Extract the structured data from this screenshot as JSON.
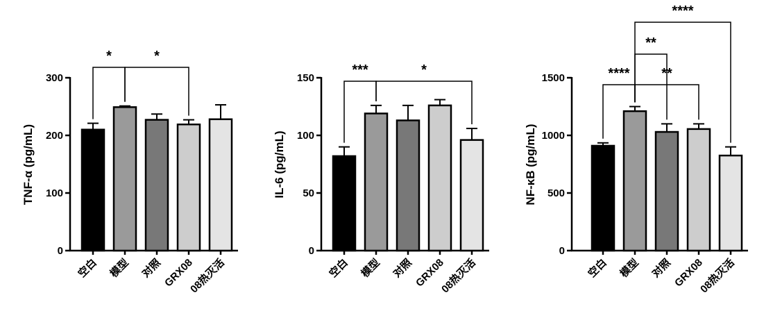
{
  "chart_data": [
    {
      "type": "bar",
      "ylabel": "TNF-α (pg/mL)",
      "ylim": [
        0,
        300
      ],
      "yticks": [
        0,
        100,
        200,
        300
      ],
      "categories": [
        "空白",
        "模型",
        "对照",
        "GRX08",
        "08热灭活"
      ],
      "values": [
        210,
        249,
        227,
        219,
        228
      ],
      "errors": [
        11,
        2,
        10,
        8,
        25
      ],
      "bar_colors": [
        "#000000",
        "#9a9a9a",
        "#787878",
        "#cdcdcd",
        "#e4e4e4"
      ],
      "significance": [
        {
          "from": "空白",
          "to": "模型",
          "label": "*"
        },
        {
          "from": "模型",
          "to": "GRX08",
          "label": "*"
        }
      ]
    },
    {
      "type": "bar",
      "ylabel": "IL-6 (pg/mL)",
      "ylim": [
        0,
        150
      ],
      "yticks": [
        0,
        50,
        100,
        150
      ],
      "categories": [
        "空白",
        "模型",
        "对照",
        "GRX08",
        "08热灭活"
      ],
      "values": [
        82,
        119,
        113,
        126,
        96
      ],
      "errors": [
        8,
        7,
        13,
        5,
        10
      ],
      "bar_colors": [
        "#000000",
        "#9a9a9a",
        "#787878",
        "#cdcdcd",
        "#e4e4e4"
      ],
      "significance": [
        {
          "from": "空白",
          "to": "模型",
          "label": "***"
        },
        {
          "from": "模型",
          "to": "08热灭活",
          "label": "*"
        }
      ]
    },
    {
      "type": "bar",
      "ylabel": "NF-κB (pg/mL)",
      "ylim": [
        0,
        1500
      ],
      "yticks": [
        0,
        500,
        1000,
        1500
      ],
      "categories": [
        "空白",
        "模型",
        "对照",
        "GRX08",
        "08热灭活"
      ],
      "values": [
        910,
        1210,
        1030,
        1055,
        825
      ],
      "errors": [
        25,
        40,
        70,
        45,
        75
      ],
      "bar_colors": [
        "#000000",
        "#9a9a9a",
        "#787878",
        "#cdcdcd",
        "#e4e4e4"
      ],
      "significance": [
        {
          "from": "空白",
          "to": "模型",
          "label": "****"
        },
        {
          "from": "模型",
          "to": "GRX08",
          "label": "**"
        },
        {
          "from": "模型",
          "to": "对照",
          "label": "**"
        },
        {
          "from": "模型",
          "to": "08热灭活",
          "label": "****"
        }
      ]
    }
  ]
}
